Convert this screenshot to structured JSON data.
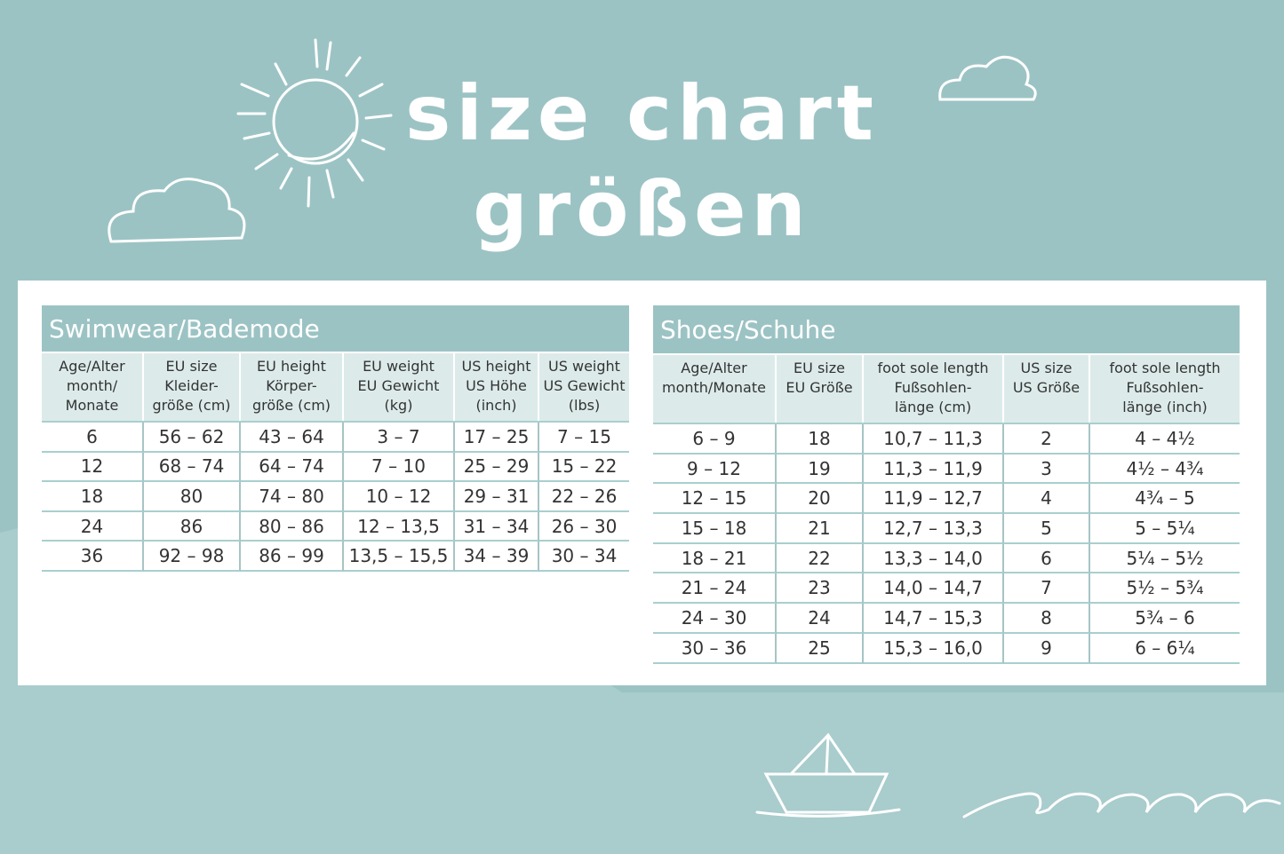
{
  "title": {
    "line1": "size chart",
    "line2": "größen"
  },
  "tables": [
    {
      "title": "Swimwear/Bademode",
      "headers": [
        [
          "Age/Alter",
          "month/",
          "Monate"
        ],
        [
          "EU size",
          "Kleider-",
          "größe (cm)"
        ],
        [
          "EU height",
          "Körper-",
          "größe (cm)"
        ],
        [
          "EU weight",
          "EU Gewicht",
          "(kg)"
        ],
        [
          "US height",
          "US Höhe",
          "(inch)"
        ],
        [
          "US weight",
          "US Gewicht",
          "(lbs)"
        ]
      ],
      "rows": [
        [
          "6",
          "56 – 62",
          "43 – 64",
          "3 – 7",
          "17 – 25",
          "7 – 15"
        ],
        [
          "12",
          "68 – 74",
          "64 – 74",
          "7 – 10",
          "25 – 29",
          "15 – 22"
        ],
        [
          "18",
          "80",
          "74 – 80",
          "10 – 12",
          "29 – 31",
          "22 – 26"
        ],
        [
          "24",
          "86",
          "80 – 86",
          "12 – 13,5",
          "31 – 34",
          "26 – 30"
        ],
        [
          "36",
          "92 – 98",
          "86 – 99",
          "13,5 – 15,5",
          "34 – 39",
          "30 – 34"
        ]
      ]
    },
    {
      "title": "Shoes/Schuhe",
      "headers": [
        [
          "Age/Alter",
          "month/Monate"
        ],
        [
          "EU size",
          "EU Größe"
        ],
        [
          "foot sole length",
          "Fußsohlen-",
          "länge (cm)"
        ],
        [
          "US size",
          "US Größe"
        ],
        [
          "foot sole length",
          "Fußsohlen-",
          "länge (inch)"
        ]
      ],
      "rows": [
        [
          "6 – 9",
          "18",
          "10,7 – 11,3",
          "2",
          "4 – 4½"
        ],
        [
          "9 – 12",
          "19",
          "11,3 – 11,9",
          "3",
          "4½ – 4¾"
        ],
        [
          "12 – 15",
          "20",
          "11,9 – 12,7",
          "4",
          "4¾ – 5"
        ],
        [
          "15 – 18",
          "21",
          "12,7 – 13,3",
          "5",
          "5 – 5¼"
        ],
        [
          "18 – 21",
          "22",
          "13,3 – 14,0",
          "6",
          "5¼ – 5½"
        ],
        [
          "21 – 24",
          "23",
          "14,0 – 14,7",
          "7",
          "5½ – 5¾"
        ],
        [
          "24 – 30",
          "24",
          "14,7 – 15,3",
          "8",
          "5¾ – 6"
        ],
        [
          "30 – 36",
          "25",
          "15,3 – 16,0",
          "9",
          "6 – 6¼"
        ]
      ]
    }
  ]
}
